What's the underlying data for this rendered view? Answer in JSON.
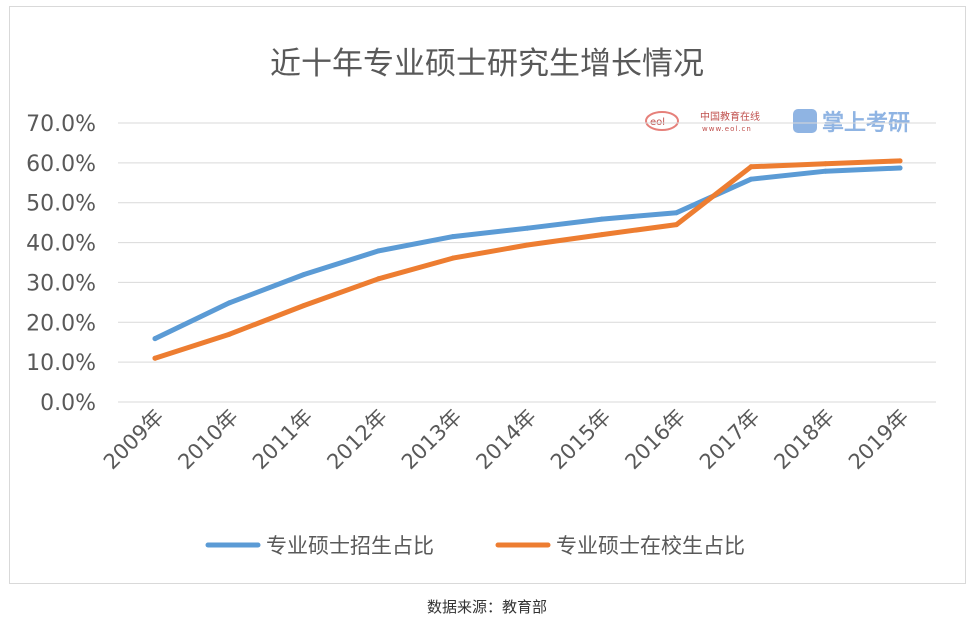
{
  "chart_data": {
    "type": "line",
    "title": "近十年专业硕士研究生增长情况",
    "categories": [
      "2009年",
      "2010年",
      "2011年",
      "2012年",
      "2013年",
      "2014年",
      "2015年",
      "2016年",
      "2017年",
      "2018年",
      "2019年"
    ],
    "y_ticks": [
      "0.0%",
      "10.0%",
      "20.0%",
      "30.0%",
      "40.0%",
      "50.0%",
      "60.0%",
      "70.0%"
    ],
    "ylim": [
      0,
      70
    ],
    "grid": true,
    "legend_position": "bottom",
    "series": [
      {
        "name": "专业硕士招生占比",
        "color": "#5b9bd5",
        "values": [
          15.9,
          24.9,
          32.0,
          37.9,
          41.5,
          43.6,
          45.9,
          47.5,
          55.9,
          57.9,
          58.7
        ]
      },
      {
        "name": "专业硕士在校生占比",
        "color": "#ed7d31",
        "values": [
          11.0,
          17.0,
          24.2,
          30.9,
          36.1,
          39.4,
          42.0,
          44.5,
          59.0,
          59.8,
          60.5
        ]
      }
    ]
  },
  "watermark": {
    "logo_text": "eol",
    "site_name": "中国教育在线",
    "site_url": "www.eol.cn",
    "brand": "掌上考研"
  },
  "source_note": "数据来源：教育部"
}
